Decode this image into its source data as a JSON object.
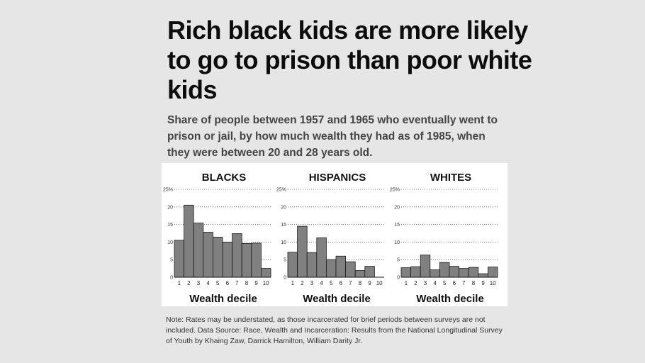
{
  "header": {
    "title": "Rich black kids are more likely to go to prison than poor white kids",
    "subtitle": "Share of people between 1957 and 1965 who eventually went to prison or jail, by how much wealth they had as of 1985, when they were between 20 and 28 years old."
  },
  "footer": {
    "note": "Note: Rates may be understated, as those incarcerated for brief periods between surveys are not included. Data Source: Race, Wealth and Incarceration: Results from the National Longitudinal Survey of Youth by Khaing Zaw, Darrick Hamilton, William Darity Jr."
  },
  "colors": {
    "bar": "#808080",
    "bar_stroke": "#1a1a1a",
    "grid": "#555555",
    "panel": "#ffffff",
    "background": "#e6e6e6"
  },
  "chart_data": [
    {
      "type": "bar",
      "title": "BLACKS",
      "xlabel": "Wealth decile",
      "categories": [
        "1",
        "2",
        "3",
        "4",
        "5",
        "6",
        "7",
        "8",
        "9",
        "10"
      ],
      "values": [
        10.5,
        20.5,
        15.4,
        12.8,
        11.4,
        10.0,
        12.4,
        9.6,
        9.7,
        2.5
      ],
      "ylim": [
        0,
        25
      ],
      "yticks": [
        "0",
        "5",
        "10",
        "15",
        "20",
        "25%"
      ],
      "grid": true
    },
    {
      "type": "bar",
      "title": "HISPANICS",
      "xlabel": "Wealth decile",
      "categories": [
        "1",
        "2",
        "3",
        "4",
        "5",
        "6",
        "7",
        "8",
        "9",
        "10"
      ],
      "values": [
        7.1,
        14.5,
        7.0,
        11.2,
        5.0,
        6.0,
        4.4,
        1.9,
        3.1,
        0
      ],
      "ylim": [
        0,
        25
      ],
      "yticks": [
        "0",
        "5",
        "10",
        "15",
        "20",
        "25%"
      ],
      "grid": true
    },
    {
      "type": "bar",
      "title": "WHITES",
      "xlabel": "Wealth decile",
      "categories": [
        "1",
        "2",
        "3",
        "4",
        "5",
        "6",
        "7",
        "8",
        "9",
        "10"
      ],
      "values": [
        2.7,
        3.0,
        6.3,
        2.1,
        4.2,
        3.1,
        2.5,
        2.8,
        1.0,
        2.9
      ],
      "ylim": [
        0,
        25
      ],
      "yticks": [
        "0",
        "5",
        "10",
        "15",
        "20",
        "25%"
      ],
      "grid": true
    }
  ]
}
